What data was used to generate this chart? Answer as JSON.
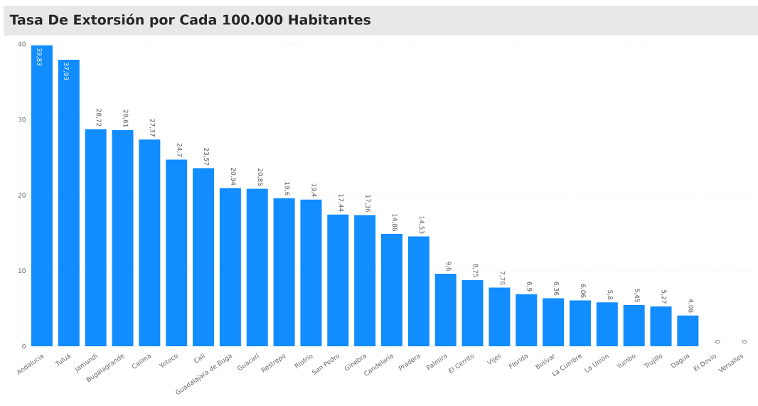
{
  "chart_data": {
    "type": "bar",
    "title": "Tasa De Extorsión por Cada 100.000 Habitantes",
    "categories": [
      "Andalucía",
      "Tuluá",
      "Jamundí",
      "Bugalagrande",
      "Calima",
      "Yotoco",
      "Cali",
      "Guadalajara de Buga",
      "Guacarí",
      "Restrepo",
      "Riofrío",
      "San Pedro",
      "Ginebra",
      "Candelaria",
      "Pradera",
      "Palmira",
      "El Cerrito",
      "Vijes",
      "Florida",
      "Bolívar",
      "La Cumbre",
      "La Unión",
      "Yumbo",
      "Trujillo",
      "Dagua",
      "El Dovio",
      "Versalles"
    ],
    "values": [
      39.83,
      37.93,
      28.72,
      28.61,
      27.37,
      24.7,
      23.57,
      20.94,
      20.85,
      19.6,
      19.4,
      17.44,
      17.36,
      14.86,
      14.53,
      9.6,
      8.75,
      7.76,
      6.9,
      6.36,
      6.06,
      5.8,
      5.45,
      5.27,
      4.08,
      0,
      0
    ],
    "value_labels": [
      "39,83",
      "37,93",
      "28,72",
      "28,61",
      "27,37",
      "24,7",
      "23,57",
      "20,94",
      "20,85",
      "19,6",
      "19,4",
      "17,44",
      "17,36",
      "14,86",
      "14,53",
      "9,6",
      "8,75",
      "7,76",
      "6,9",
      "6,36",
      "6,06",
      "5,8",
      "5,45",
      "5,27",
      "4,08",
      "0",
      "0"
    ],
    "color": "#118dff",
    "ylim": [
      0,
      40
    ],
    "yticks": [
      0,
      10,
      20,
      30,
      40
    ],
    "grid": "y"
  }
}
